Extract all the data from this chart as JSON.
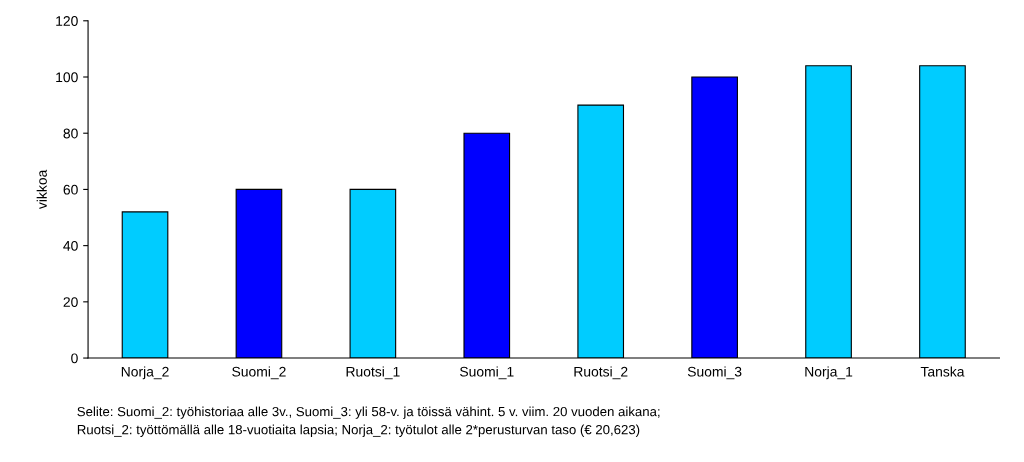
{
  "chart_data": {
    "type": "bar",
    "ylabel": "vikkoa",
    "categories": [
      "Norja_2",
      "Suomi_2",
      "Ruotsi_1",
      "Suomi_1",
      "Ruotsi_2",
      "Suomi_3",
      "Norja_1",
      "Tanska"
    ],
    "values": [
      52,
      60,
      60,
      80,
      90,
      100,
      104,
      104
    ],
    "colors": [
      "#00ccff",
      "#0000ff",
      "#00ccff",
      "#0000ff",
      "#00ccff",
      "#0000ff",
      "#00ccff",
      "#00ccff"
    ],
    "ylim": [
      0,
      120
    ],
    "yticks": [
      0,
      20,
      40,
      60,
      80,
      100,
      120
    ],
    "grid": false,
    "annotations": [
      "Selite: Suomi_2: työhistoriaa alle 3v., Suomi_3: yli 58-v. ja töissä vähint. 5 v. viim. 20 vuoden aikana;\nRuotsi_2: työttömällä alle 18-vuotiaita lapsia; Norja_2: työtulot alle 2*perusturvan taso (€ 20,623)"
    ]
  }
}
